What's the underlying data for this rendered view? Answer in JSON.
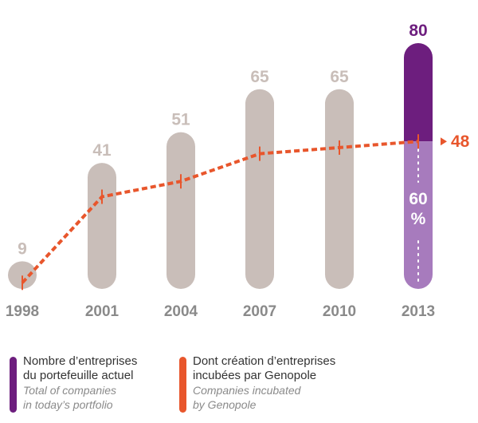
{
  "chart_data": {
    "type": "bar",
    "categories": [
      "1998",
      "2001",
      "2004",
      "2007",
      "2010",
      "2013"
    ],
    "series": [
      {
        "name": "Nombre d’entreprises du portefeuille actuel",
        "values": [
          9,
          41,
          51,
          65,
          65,
          80
        ]
      },
      {
        "name": "Dont création d’entreprises incubées par Genopole",
        "type": "line",
        "values": [
          2,
          30,
          35,
          44,
          46,
          48
        ]
      }
    ],
    "bar_labels": [
      "9",
      "41",
      "51",
      "65",
      "65",
      "80"
    ],
    "end_label": "48",
    "share_label": "60",
    "share_unit": "%",
    "ylim": [
      0,
      85
    ]
  },
  "colors": {
    "bar": "#c9beb9",
    "highlight_top": "#6d1e7e",
    "highlight_bottom": "#a77bbd",
    "line": "#e8562c",
    "axis_text": "#8a8a8a"
  },
  "legend": [
    {
      "fr_line1": "Nombre d’entreprises",
      "fr_line2": "du portefeuille actuel",
      "en_line1": "Total of companies",
      "en_line2": "in today’s portfolio",
      "color": "#6d1e7e"
    },
    {
      "fr_line1": "Dont création d’entreprises",
      "fr_line2": "incubées par Genopole",
      "en_line1": "Companies incubated",
      "en_line2": "by Genopole",
      "color": "#e8562c"
    }
  ]
}
